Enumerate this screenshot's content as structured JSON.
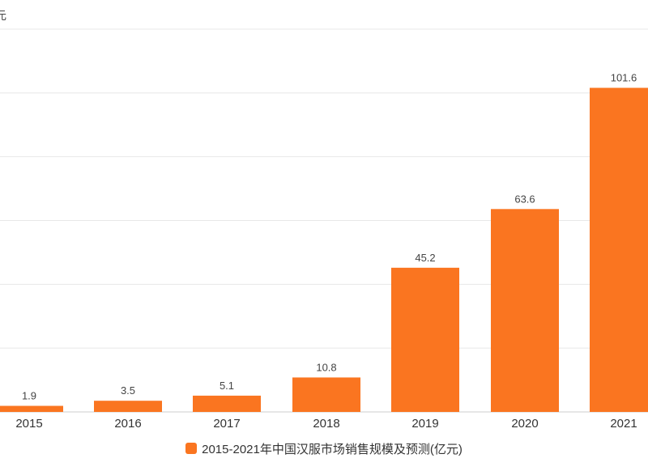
{
  "chart_data": {
    "type": "bar",
    "unit_label": "元",
    "categories": [
      "2015",
      "2016",
      "2017",
      "2018",
      "2019",
      "2020",
      "2021"
    ],
    "series": [
      {
        "name": "2015-2021年中国汉服市场销售规模及预测(亿元)",
        "values": [
          1.9,
          3.5,
          5.1,
          10.8,
          45.2,
          63.6,
          101.6
        ]
      }
    ],
    "data_labels": [
      "1.9",
      "3.5",
      "5.1",
      "10.8",
      "45.2",
      "63.6",
      "101.6"
    ],
    "ylim": [
      0,
      120
    ],
    "grid": true,
    "legend_position": "bottom",
    "bar_color": "#FA7520",
    "grid_color": "#E8E8E8"
  }
}
